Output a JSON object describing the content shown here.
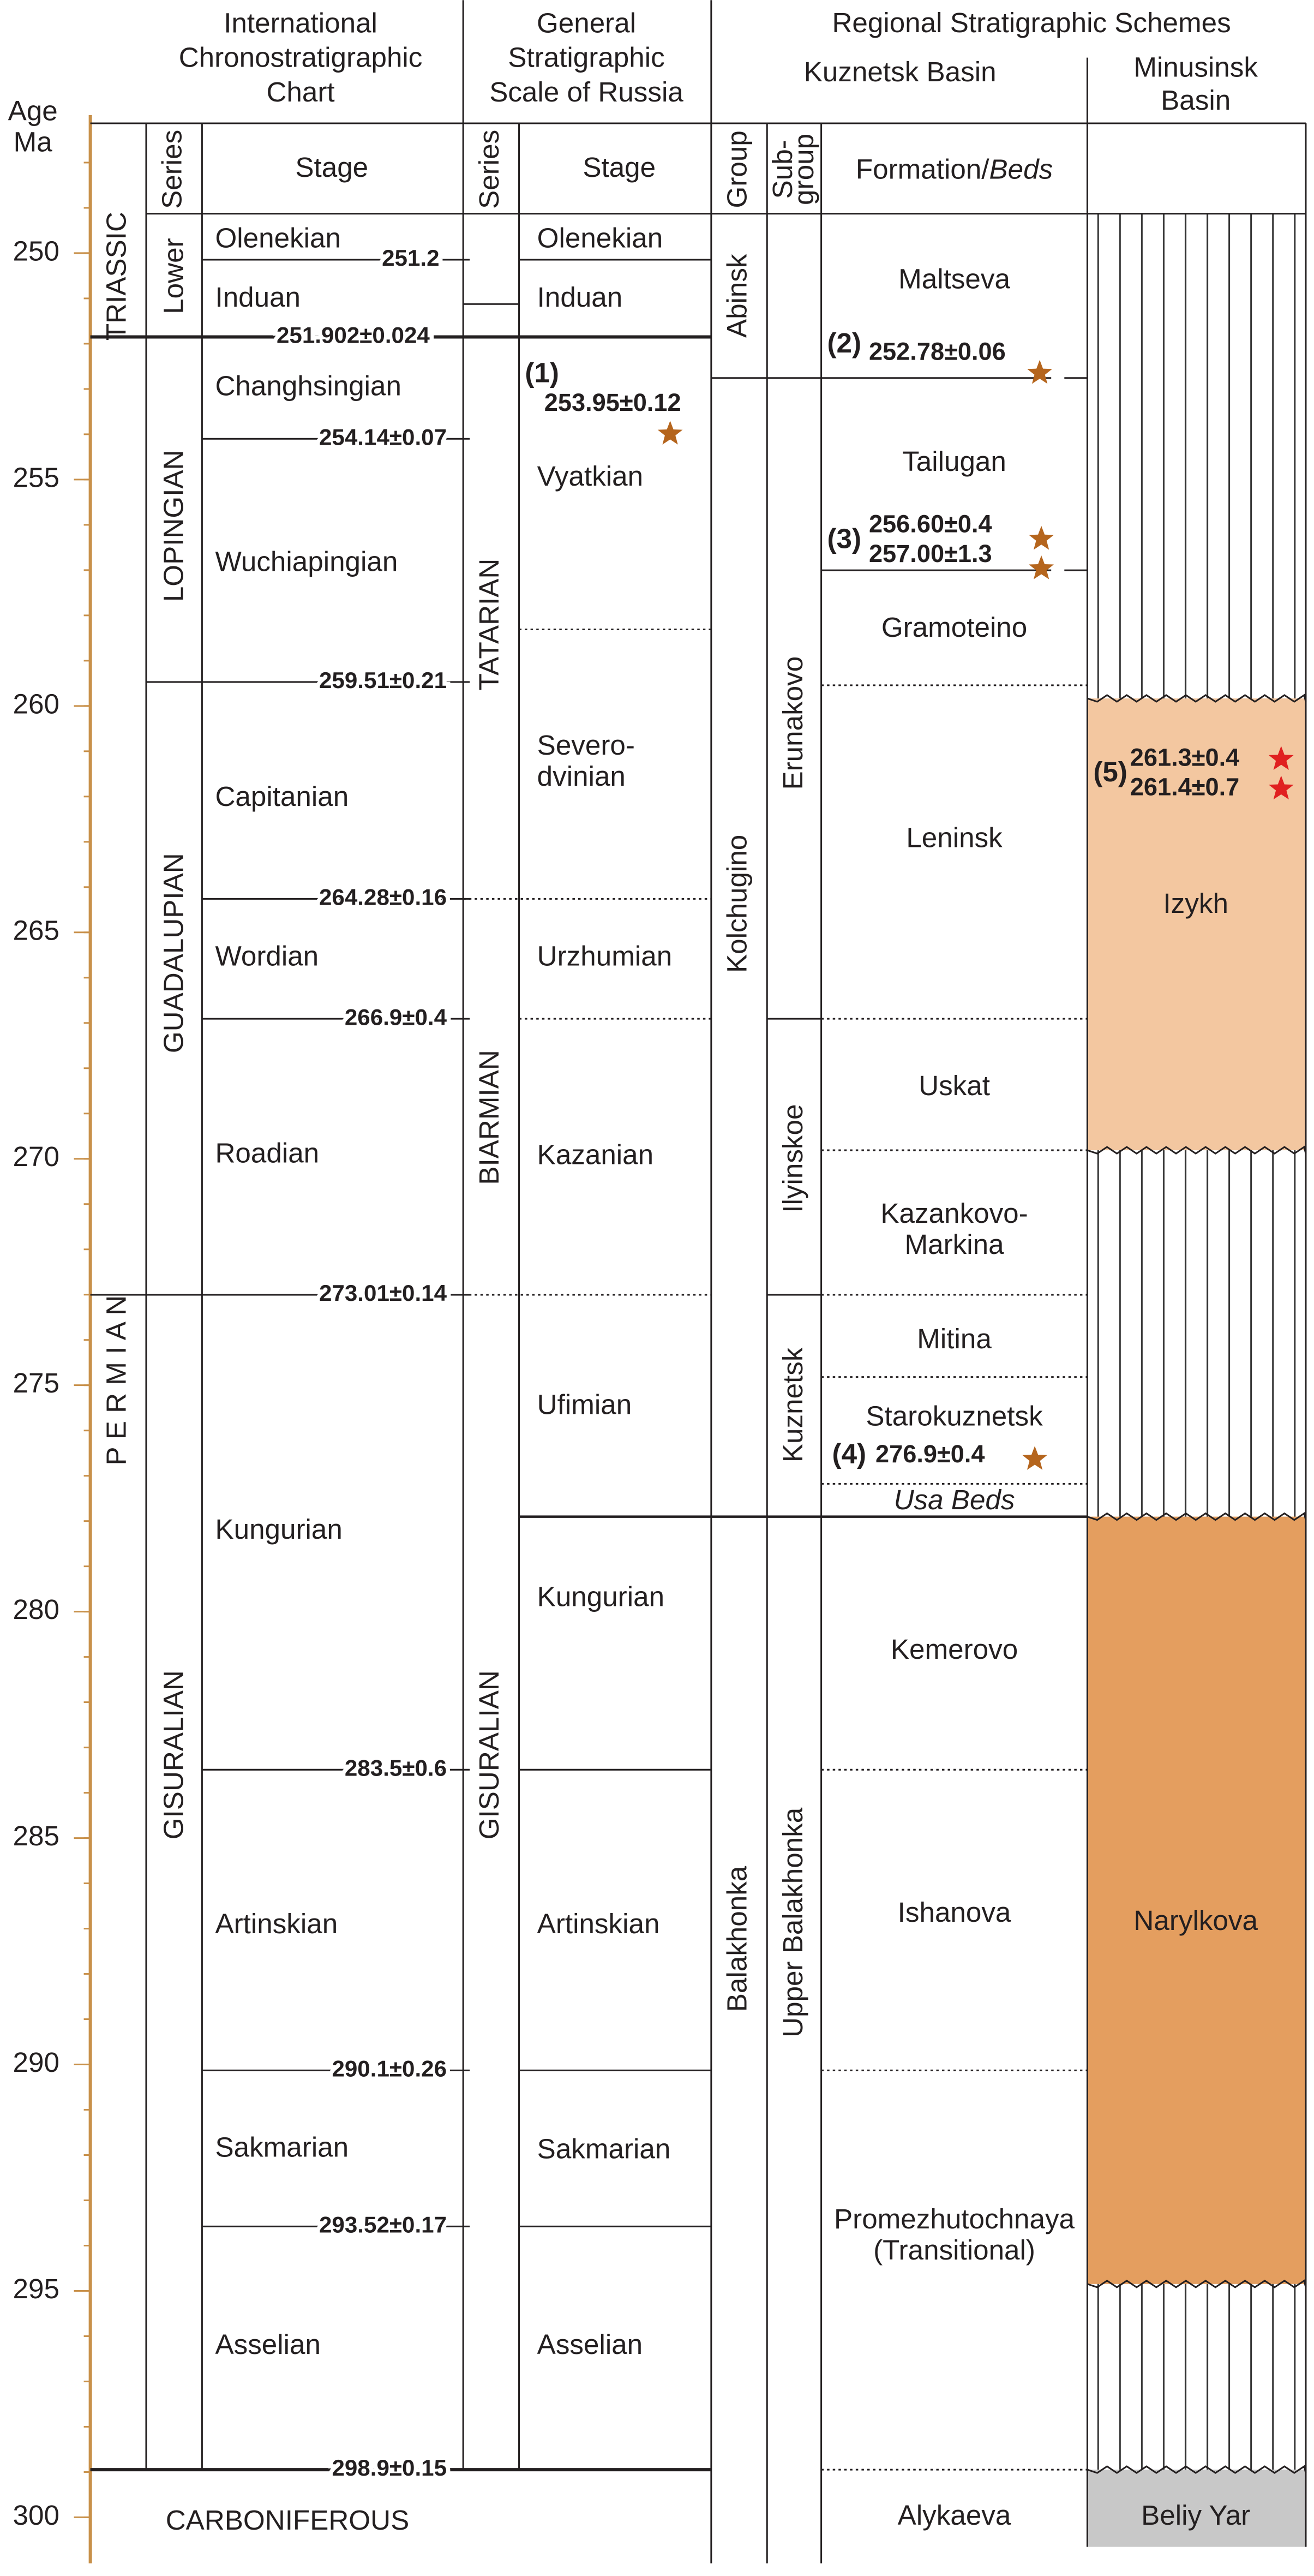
{
  "header": {
    "age": [
      "Age",
      "Ma"
    ],
    "icc_title": [
      "International",
      "Chronostratigraphic",
      "Chart"
    ],
    "gssr_title": [
      "General",
      "Stratigraphic",
      "Scale of Russia"
    ],
    "regional_title": "Regional Stratigraphic Schemes",
    "kuznetsk": "Kuznetsk Basin",
    "minusinsk": [
      "Minusinsk",
      "Basin"
    ]
  },
  "column_headers": {
    "icc_series": "Series",
    "icc_stage": "Stage",
    "gssr_series": "Series",
    "gssr_stage": "Stage",
    "group": "Group",
    "subgroup": [
      "Sub-",
      "group"
    ],
    "formation": "Formation/",
    "beds": "Beds"
  },
  "axis": {
    "ticks": [
      250,
      255,
      260,
      265,
      270,
      275,
      280,
      285,
      290,
      295,
      300
    ]
  },
  "systems": [
    "TRIASSIC",
    "P E R M I A N",
    "CARBONIFEROUS"
  ],
  "icc_series": [
    "Lower",
    "LOPINGIAN",
    "GUADALUPIAN",
    "GISURALIAN"
  ],
  "icc_stages": [
    "Olenekian",
    "Induan",
    "Changhsingian",
    "Wuchiapingian",
    "Capitanian",
    "Wordian",
    "Roadian",
    "Kungurian",
    "Artinskian",
    "Sakmarian",
    "Asselian"
  ],
  "icc_boundaries": [
    "251.2",
    "251.902±0.024",
    "254.14±0.07",
    "259.51±0.21",
    "264.28±0.16",
    "266.9±0.4",
    "273.01±0.14",
    "283.5±0.6",
    "290.1±0.26",
    "293.52±0.17",
    "298.9±0.15"
  ],
  "gssr_series": [
    "TATARIAN",
    "BIARMIAN",
    "GISURALIAN"
  ],
  "gssr_stages": [
    "Olenekian",
    "Induan",
    "Vyatkian",
    [
      "Severo-",
      "dvinian"
    ],
    "Urzhumian",
    "Kazanian",
    "Ufimian",
    "Kungurian",
    "Artinskian",
    "Sakmarian",
    "Asselian"
  ],
  "gssr_date": {
    "id": "(1)",
    "age": "253.95±0.12"
  },
  "groups": [
    "Abinsk",
    "Kolchugino",
    "Balakhonka"
  ],
  "subgroups": [
    "Erunakovo",
    "Ilyinskoe",
    "Kuznetsk",
    "Upper Balakhonka"
  ],
  "formations": [
    "Maltseva",
    "Tailugan",
    "Gramoteino",
    "Leninsk",
    "Uskat",
    [
      "Kazankovo-",
      "Markina"
    ],
    "Mitina",
    "Starokuznetsk",
    "Usa Beds",
    "Kemerovo",
    "Ishanova",
    [
      "Promezhutochnaya",
      "(Transitional)"
    ],
    "Alykaeva"
  ],
  "kuznetsk_dates": [
    {
      "id": "(2)",
      "ages": [
        "252.78±0.06"
      ]
    },
    {
      "id": "(3)",
      "ages": [
        "256.60±0.4",
        "257.00±1.3"
      ]
    },
    {
      "id": "(4)",
      "ages": [
        "276.9±0.4"
      ]
    }
  ],
  "minusinsk": {
    "units": [
      "Izykh",
      "Narylkova",
      "Beliy Yar"
    ],
    "dates": {
      "id": "(5)",
      "ages": [
        "261.3±0.4",
        "261.4±0.7"
      ]
    }
  }
}
